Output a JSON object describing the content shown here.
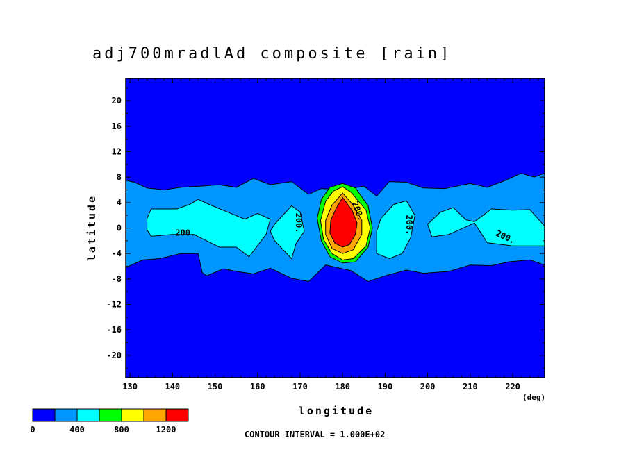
{
  "chart_data": {
    "type": "contour",
    "title": "adj700mradlAd composite [rain]",
    "xlabel": "longitude",
    "xunit": "(deg)",
    "ylabel": "latitude",
    "xlim": [
      129,
      227.5
    ],
    "ylim": [
      -23.5,
      23.5
    ],
    "xticks": [
      130,
      140,
      150,
      160,
      170,
      180,
      190,
      200,
      210,
      220
    ],
    "yticks": [
      20,
      16,
      12,
      8,
      4,
      0,
      -4,
      -8,
      -12,
      -16,
      -20
    ],
    "contour_interval_text": "CONTOUR INTERVAL = 1.000E+02",
    "contour_labels": [
      {
        "text": "200",
        "x": 143,
        "y": -1.2,
        "rotate": 0
      },
      {
        "text": "200",
        "x": 169,
        "y": 0.8,
        "rotate": 90
      },
      {
        "text": "200",
        "x": 195,
        "y": 0.5,
        "rotate": 90
      },
      {
        "text": "200",
        "x": 218,
        "y": -1.8,
        "rotate": 25
      },
      {
        "text": "200",
        "x": 183,
        "y": 2.5,
        "rotate": 70
      }
    ],
    "colorbar": {
      "levels": [
        0,
        200,
        400,
        600,
        800,
        1000,
        1200,
        1400
      ],
      "tick_labels": [
        "0",
        "400",
        "800",
        "1200"
      ],
      "colors": [
        "#0000ff",
        "#0096ff",
        "#00ffff",
        "#00ff00",
        "#ffff00",
        "#ffa500",
        "#ff0000"
      ]
    },
    "regions": [
      {
        "level": 200,
        "points": [
          [
            129,
            7.5
          ],
          [
            131,
            7.2
          ],
          [
            134,
            6.3
          ],
          [
            138,
            6.0
          ],
          [
            142,
            6.4
          ],
          [
            147,
            6.6
          ],
          [
            151,
            6.8
          ],
          [
            155,
            6.4
          ],
          [
            159,
            7.8
          ],
          [
            163,
            6.8
          ],
          [
            168,
            7.3
          ],
          [
            172,
            5.3
          ],
          [
            175,
            6.2
          ],
          [
            180,
            6.0
          ],
          [
            185,
            6.6
          ],
          [
            188,
            5.0
          ],
          [
            191,
            7.3
          ],
          [
            195,
            7.2
          ],
          [
            199,
            6.3
          ],
          [
            204,
            6.2
          ],
          [
            210,
            7.0
          ],
          [
            214,
            6.4
          ],
          [
            218,
            7.4
          ],
          [
            222,
            8.6
          ],
          [
            225,
            8.0
          ],
          [
            227.5,
            8.6
          ],
          [
            227.5,
            -5.8
          ],
          [
            224,
            -5.0
          ],
          [
            219,
            -5.3
          ],
          [
            215,
            -5.9
          ],
          [
            210,
            -5.8
          ],
          [
            205,
            -6.8
          ],
          [
            199,
            -7.1
          ],
          [
            195,
            -6.6
          ],
          [
            190,
            -7.5
          ],
          [
            186,
            -8.4
          ],
          [
            182,
            -6.7
          ],
          [
            176,
            -5.8
          ],
          [
            172,
            -8.4
          ],
          [
            168,
            -7.9
          ],
          [
            163,
            -6.3
          ],
          [
            159,
            -7.2
          ],
          [
            155,
            -6.8
          ],
          [
            152,
            -6.4
          ],
          [
            148,
            -7.5
          ],
          [
            147,
            -7.0
          ],
          [
            146,
            -4.0
          ],
          [
            142,
            -4.0
          ],
          [
            137,
            -4.8
          ],
          [
            133,
            -5.0
          ],
          [
            129,
            -6.2
          ]
        ]
      },
      {
        "level": 400,
        "points": [
          [
            134,
            1.5
          ],
          [
            135,
            3.0
          ],
          [
            141,
            3.0
          ],
          [
            144,
            3.7
          ],
          [
            146,
            4.5
          ],
          [
            149,
            3.6
          ],
          [
            153,
            2.5
          ],
          [
            157,
            1.4
          ],
          [
            160,
            2.3
          ],
          [
            163,
            1.4
          ],
          [
            162,
            -1.0
          ],
          [
            158,
            -4.5
          ],
          [
            155,
            -3.0
          ],
          [
            151,
            -3.0
          ],
          [
            148,
            -2.0
          ],
          [
            145,
            -1.0
          ],
          [
            140,
            -1.0
          ],
          [
            135,
            -1.3
          ],
          [
            134,
            -0.3
          ]
        ]
      },
      {
        "level": 400,
        "points": [
          [
            164,
            0.6
          ],
          [
            168,
            3.5
          ],
          [
            170,
            2.5
          ],
          [
            171,
            -0.5
          ],
          [
            169,
            -2.5
          ],
          [
            168,
            -4.8
          ],
          [
            164,
            -2.0
          ],
          [
            163,
            -0.5
          ]
        ]
      },
      {
        "level": 400,
        "points": [
          [
            189,
            1.5
          ],
          [
            192,
            3.7
          ],
          [
            195,
            4.3
          ],
          [
            197,
            2.0
          ],
          [
            196,
            -1.5
          ],
          [
            194,
            -4.0
          ],
          [
            191,
            -4.8
          ],
          [
            188,
            -4.0
          ],
          [
            188,
            -0.5
          ]
        ]
      },
      {
        "level": 400,
        "points": [
          [
            200,
            0.6
          ],
          [
            203,
            2.5
          ],
          [
            206,
            3.2
          ],
          [
            209,
            1.3
          ],
          [
            211,
            1.0
          ],
          [
            215,
            3.0
          ],
          [
            220,
            2.8
          ],
          [
            224,
            2.9
          ],
          [
            227.5,
            0.3
          ],
          [
            227.5,
            -2.8
          ],
          [
            220,
            -2.8
          ],
          [
            214,
            -2.3
          ],
          [
            211,
            0.8
          ],
          [
            205,
            -1.0
          ],
          [
            201,
            -1.4
          ]
        ]
      },
      {
        "level": 600,
        "points": [
          [
            180,
            7.0
          ],
          [
            183,
            6.3
          ],
          [
            186,
            3.5
          ],
          [
            187,
            0.0
          ],
          [
            186,
            -3.0
          ],
          [
            183,
            -5.3
          ],
          [
            180,
            -5.5
          ],
          [
            177,
            -4.5
          ],
          [
            175,
            -2.0
          ],
          [
            174,
            1.5
          ],
          [
            175,
            4.5
          ],
          [
            177,
            6.4
          ]
        ]
      },
      {
        "level": 800,
        "points": [
          [
            180,
            6.5
          ],
          [
            182,
            5.6
          ],
          [
            185.5,
            2.8
          ],
          [
            186.5,
            0.0
          ],
          [
            185.5,
            -2.8
          ],
          [
            182.5,
            -4.8
          ],
          [
            180,
            -5.0
          ],
          [
            177.5,
            -4.0
          ],
          [
            175.5,
            -1.8
          ],
          [
            174.8,
            1.2
          ],
          [
            176,
            4.2
          ],
          [
            177.8,
            5.8
          ]
        ]
      },
      {
        "level": 1000,
        "points": [
          [
            180,
            5.5
          ],
          [
            182.5,
            3.6
          ],
          [
            184.5,
            1.2
          ],
          [
            184.5,
            -1.0
          ],
          [
            182.5,
            -3.4
          ],
          [
            180,
            -4.0
          ],
          [
            177.5,
            -3.2
          ],
          [
            176,
            -1.0
          ],
          [
            176,
            1.2
          ],
          [
            177.5,
            3.6
          ]
        ]
      },
      {
        "level": 1200,
        "points": [
          [
            180,
            4.8
          ],
          [
            182.2,
            2.8
          ],
          [
            183.4,
            0.8
          ],
          [
            183,
            -1.0
          ],
          [
            181.6,
            -2.6
          ],
          [
            180,
            -3.0
          ],
          [
            178.2,
            -2.4
          ],
          [
            177,
            -0.8
          ],
          [
            177.2,
            1.2
          ],
          [
            178.4,
            3.0
          ]
        ]
      }
    ]
  }
}
